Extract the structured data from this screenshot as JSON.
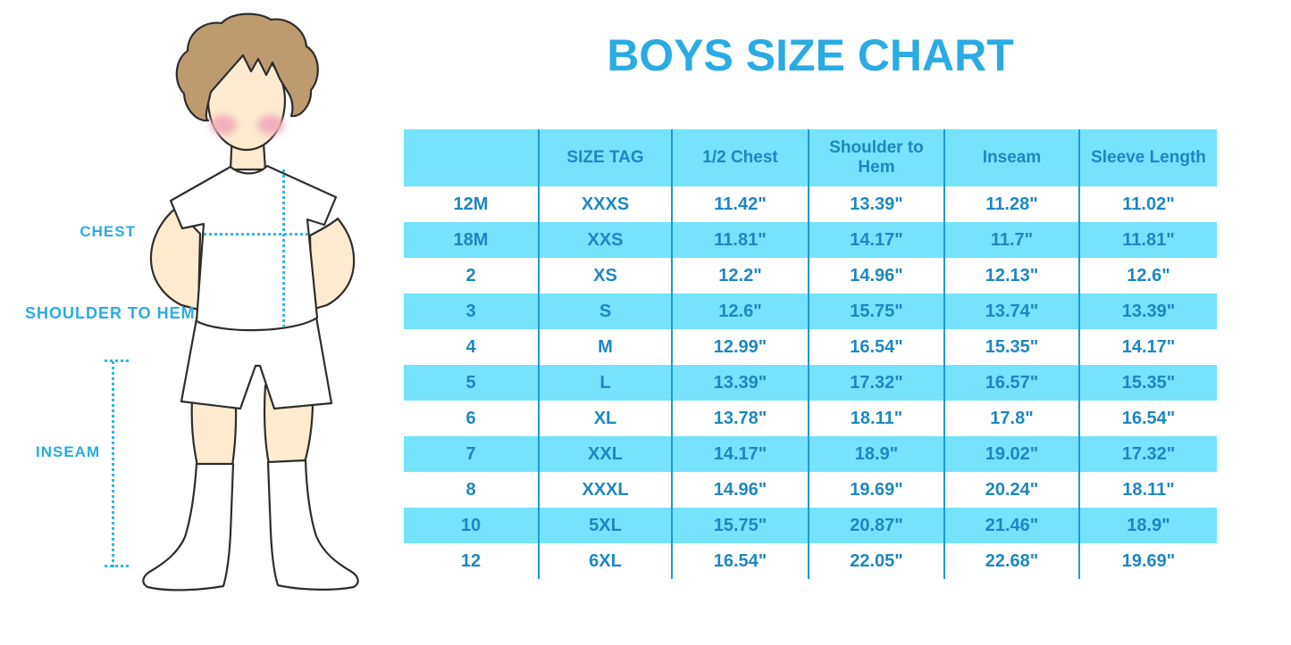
{
  "title": "BOYS SIZE CHART",
  "figure": {
    "description": "boy-measurement-illustration",
    "labels": {
      "chest": "CHEST",
      "shoulder_to_hem": "SHOULDER TO HEM",
      "inseam": "INSEAM"
    }
  },
  "table": {
    "headers": [
      "",
      "SIZE TAG",
      "1/2 Chest",
      "Shoulder to Hem",
      "Inseam",
      "Sleeve Length"
    ],
    "rows": [
      [
        "12M",
        "XXXS",
        "11.42\"",
        "13.39\"",
        "11.28\"",
        "11.02\""
      ],
      [
        "18M",
        "XXS",
        "11.81\"",
        "14.17\"",
        "11.7\"",
        "11.81\""
      ],
      [
        "2",
        "XS",
        "12.2\"",
        "14.96\"",
        "12.13\"",
        "12.6\""
      ],
      [
        "3",
        "S",
        "12.6\"",
        "15.75\"",
        "13.74\"",
        "13.39\""
      ],
      [
        "4",
        "M",
        "12.99\"",
        "16.54\"",
        "15.35\"",
        "14.17\""
      ],
      [
        "5",
        "L",
        "13.39\"",
        "17.32\"",
        "16.57\"",
        "15.35\""
      ],
      [
        "6",
        "XL",
        "13.78\"",
        "18.11\"",
        "17.8\"",
        "16.54\""
      ],
      [
        "7",
        "XXL",
        "14.17\"",
        "18.9\"",
        "19.02\"",
        "17.32\""
      ],
      [
        "8",
        "XXXL",
        "14.96\"",
        "19.69\"",
        "20.24\"",
        "18.11\""
      ],
      [
        "10",
        "5XL",
        "15.75\"",
        "20.87\"",
        "21.46\"",
        "18.9\""
      ],
      [
        "12",
        "6XL",
        "16.54\"",
        "22.05\"",
        "22.68\"",
        "19.69\""
      ]
    ]
  },
  "colors": {
    "title_blue": "#2aabe3",
    "table_text_blue": "#1d87c2",
    "row_cyan": "#74e3fb",
    "grid_line": "#1d9ad2",
    "dotted_line": "#2bb5ea",
    "hair_brown": "#bd9b6e",
    "skin": "#fcebcf",
    "blush_pink": "#f3aebd"
  }
}
